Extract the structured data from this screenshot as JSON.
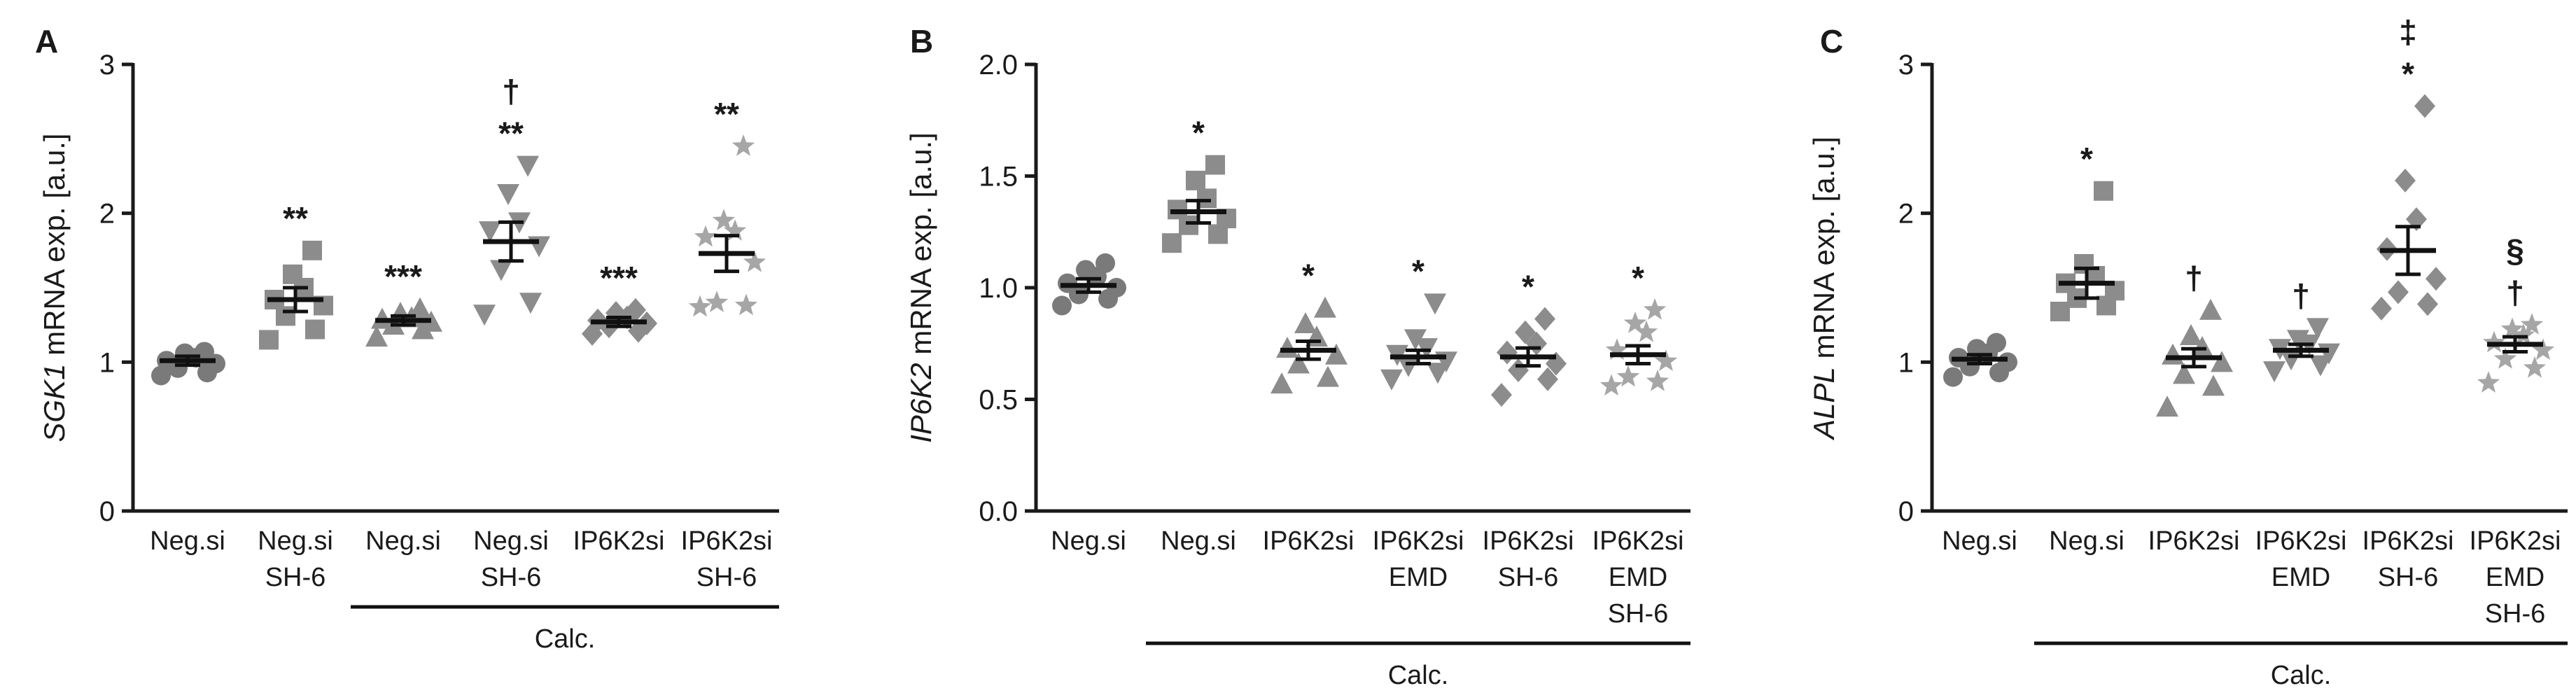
{
  "chart_data": [
    {
      "type": "scatter",
      "panel": "A",
      "ylabel_gene": "SGK1",
      "ylabel_rest": " mRNA exp. [a.u.]",
      "ylim": [
        0,
        3
      ],
      "yticks": [
        "0",
        "1",
        "2",
        "3"
      ],
      "group_label": "Calc.",
      "categories": [
        {
          "lines": [
            "Neg.si"
          ],
          "marker": "circle",
          "color": "#7a7a7a",
          "mean": 1.01,
          "sem": 0.03,
          "points": [
            0.91,
            0.93,
            0.96,
            0.99,
            1.01,
            1.03,
            1.06,
            1.07
          ],
          "sig": []
        },
        {
          "lines": [
            "Neg.si",
            "SH-6"
          ],
          "marker": "square",
          "color": "#8c8c8c",
          "mean": 1.42,
          "sem": 0.08,
          "points": [
            1.15,
            1.22,
            1.31,
            1.38,
            1.42,
            1.5,
            1.59,
            1.75
          ],
          "sig": [
            "**"
          ]
        },
        {
          "lines": [
            "Neg.si"
          ],
          "marker": "triangle",
          "color": "#8c8c8c",
          "mean": 1.28,
          "sem": 0.03,
          "points": [
            1.17,
            1.22,
            1.25,
            1.27,
            1.29,
            1.3,
            1.33,
            1.36
          ],
          "sig": [
            "***"
          ]
        },
        {
          "lines": [
            "Neg.si",
            "SH-6"
          ],
          "marker": "triangle-down",
          "color": "#8c8c8c",
          "mean": 1.81,
          "sem": 0.13,
          "points": [
            1.32,
            1.4,
            1.62,
            1.78,
            1.88,
            1.94,
            2.13,
            2.32
          ],
          "sig": [
            "**",
            "†"
          ]
        },
        {
          "lines": [
            "IP6K2si"
          ],
          "marker": "diamond",
          "color": "#8c8c8c",
          "mean": 1.27,
          "sem": 0.03,
          "points": [
            1.19,
            1.21,
            1.24,
            1.26,
            1.28,
            1.3,
            1.33,
            1.35
          ],
          "sig": [
            "***"
          ]
        },
        {
          "lines": [
            "IP6K2si",
            "SH-6"
          ],
          "marker": "star",
          "color": "#a6a6a6",
          "mean": 1.73,
          "sem": 0.12,
          "points": [
            1.37,
            1.38,
            1.4,
            1.67,
            1.84,
            1.88,
            1.95,
            2.45
          ],
          "sig": [
            "**"
          ]
        }
      ],
      "group_span": [
        2,
        5
      ]
    },
    {
      "type": "scatter",
      "panel": "B",
      "ylabel_gene": "IP6K2",
      "ylabel_rest": " mRNA exp. [a.u.]",
      "ylim": [
        0,
        2.0
      ],
      "yticks": [
        "0.0",
        "0.5",
        "1.0",
        "1.5",
        "2.0"
      ],
      "group_label": "Calc.",
      "categories": [
        {
          "lines": [
            "Neg.si"
          ],
          "marker": "circle",
          "color": "#7a7a7a",
          "mean": 1.01,
          "sem": 0.03,
          "points": [
            0.92,
            0.95,
            0.97,
            1.0,
            1.02,
            1.05,
            1.08,
            1.11
          ],
          "sig": []
        },
        {
          "lines": [
            "Neg.si"
          ],
          "marker": "square",
          "color": "#8c8c8c",
          "mean": 1.34,
          "sem": 0.05,
          "points": [
            1.2,
            1.24,
            1.28,
            1.31,
            1.35,
            1.4,
            1.48,
            1.55
          ],
          "sig": [
            "*"
          ]
        },
        {
          "lines": [
            "IP6K2si"
          ],
          "marker": "triangle",
          "color": "#8c8c8c",
          "mean": 0.72,
          "sem": 0.04,
          "points": [
            0.57,
            0.6,
            0.66,
            0.7,
            0.73,
            0.78,
            0.84,
            0.91
          ],
          "sig": [
            "*"
          ]
        },
        {
          "lines": [
            "IP6K2si",
            "EMD"
          ],
          "marker": "triangle-down",
          "color": "#8c8c8c",
          "mean": 0.69,
          "sem": 0.03,
          "points": [
            0.59,
            0.62,
            0.65,
            0.67,
            0.7,
            0.73,
            0.77,
            0.93
          ],
          "sig": [
            "*"
          ]
        },
        {
          "lines": [
            "IP6K2si",
            "SH-6"
          ],
          "marker": "diamond",
          "color": "#8c8c8c",
          "mean": 0.69,
          "sem": 0.04,
          "points": [
            0.52,
            0.59,
            0.63,
            0.66,
            0.71,
            0.75,
            0.8,
            0.86
          ],
          "sig": [
            "*"
          ]
        },
        {
          "lines": [
            "IP6K2si",
            "EMD",
            "SH-6"
          ],
          "marker": "star",
          "color": "#a6a6a6",
          "mean": 0.7,
          "sem": 0.04,
          "points": [
            0.56,
            0.58,
            0.6,
            0.67,
            0.72,
            0.8,
            0.84,
            0.9
          ],
          "sig": [
            "*"
          ]
        }
      ],
      "group_span": [
        1,
        5
      ]
    },
    {
      "type": "scatter",
      "panel": "C",
      "ylabel_gene": "ALPL",
      "ylabel_rest": " mRNA exp. [a.u.]",
      "ylim": [
        0,
        3
      ],
      "yticks": [
        "0",
        "1",
        "2",
        "3"
      ],
      "group_label": "Calc.",
      "categories": [
        {
          "lines": [
            "Neg.si"
          ],
          "marker": "circle",
          "color": "#7a7a7a",
          "mean": 1.02,
          "sem": 0.03,
          "points": [
            0.9,
            0.93,
            0.97,
            1.0,
            1.03,
            1.06,
            1.09,
            1.13
          ],
          "sig": []
        },
        {
          "lines": [
            "Neg.si"
          ],
          "marker": "square",
          "color": "#8c8c8c",
          "mean": 1.53,
          "sem": 0.1,
          "points": [
            1.34,
            1.38,
            1.43,
            1.48,
            1.53,
            1.58,
            1.66,
            2.15
          ],
          "sig": [
            "*"
          ]
        },
        {
          "lines": [
            "IP6K2si"
          ],
          "marker": "triangle",
          "color": "#8c8c8c",
          "mean": 1.03,
          "sem": 0.06,
          "points": [
            0.7,
            0.84,
            0.92,
            1.0,
            1.05,
            1.1,
            1.18,
            1.35
          ],
          "sig": [
            "†"
          ]
        },
        {
          "lines": [
            "IP6K2si",
            "EMD"
          ],
          "marker": "triangle-down",
          "color": "#8c8c8c",
          "mean": 1.08,
          "sem": 0.04,
          "points": [
            0.94,
            0.98,
            1.02,
            1.06,
            1.09,
            1.12,
            1.15,
            1.23
          ],
          "sig": [
            "†"
          ]
        },
        {
          "lines": [
            "IP6K2si",
            "SH-6"
          ],
          "marker": "diamond",
          "color": "#8c8c8c",
          "mean": 1.75,
          "sem": 0.16,
          "points": [
            1.36,
            1.39,
            1.47,
            1.56,
            1.76,
            1.96,
            2.22,
            2.72
          ],
          "sig": [
            "*",
            "‡"
          ]
        },
        {
          "lines": [
            "IP6K2si",
            "EMD",
            "SH-6"
          ],
          "marker": "star",
          "color": "#a6a6a6",
          "mean": 1.12,
          "sem": 0.05,
          "points": [
            0.86,
            0.96,
            1.02,
            1.08,
            1.13,
            1.18,
            1.22,
            1.25
          ],
          "sig": [
            "†",
            "§"
          ]
        }
      ],
      "group_span": [
        1,
        5
      ]
    }
  ]
}
